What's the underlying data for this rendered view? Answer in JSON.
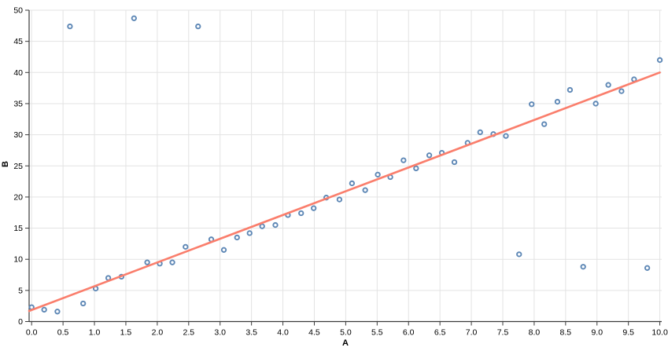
{
  "chart_data": {
    "type": "scatter",
    "title": "",
    "xlabel": "A",
    "ylabel": "B",
    "xlim": [
      -0.04,
      10.03
    ],
    "ylim": [
      0,
      50
    ],
    "grid": true,
    "legend": "none",
    "x_tick_labels": [
      "0.0",
      "0.5",
      "1.0",
      "1.5",
      "2.0",
      "2.5",
      "3.0",
      "3.5",
      "4.0",
      "4.5",
      "5.0",
      "5.5",
      "6.0",
      "6.5",
      "7.0",
      "7.5",
      "8.0",
      "8.5",
      "9.0",
      "9.5",
      "10.0"
    ],
    "y_tick_labels": [
      "0",
      "5",
      "10",
      "15",
      "20",
      "25",
      "30",
      "35",
      "40",
      "45",
      "50"
    ],
    "series": [
      {
        "name": "data-points",
        "type": "scatter",
        "marker_shape": "open-circle",
        "marker_stroke": "#5d87b5",
        "marker_fill": "#fcfdff",
        "points": [
          [
            0.0,
            2.3
          ],
          [
            0.2,
            1.9
          ],
          [
            0.41,
            1.6
          ],
          [
            0.61,
            47.4
          ],
          [
            0.82,
            2.9
          ],
          [
            1.02,
            5.3
          ],
          [
            1.22,
            7.0
          ],
          [
            1.43,
            7.2
          ],
          [
            1.63,
            48.7
          ],
          [
            1.84,
            9.5
          ],
          [
            2.04,
            9.3
          ],
          [
            2.24,
            9.5
          ],
          [
            2.45,
            12.0
          ],
          [
            2.65,
            47.4
          ],
          [
            2.86,
            13.2
          ],
          [
            3.06,
            11.5
          ],
          [
            3.27,
            13.5
          ],
          [
            3.47,
            14.2
          ],
          [
            3.67,
            15.3
          ],
          [
            3.88,
            15.5
          ],
          [
            4.08,
            17.1
          ],
          [
            4.29,
            17.4
          ],
          [
            4.49,
            18.2
          ],
          [
            4.69,
            19.9
          ],
          [
            4.9,
            19.6
          ],
          [
            5.1,
            22.2
          ],
          [
            5.31,
            21.1
          ],
          [
            5.51,
            23.6
          ],
          [
            5.71,
            23.2
          ],
          [
            5.92,
            25.9
          ],
          [
            6.12,
            24.6
          ],
          [
            6.33,
            26.7
          ],
          [
            6.53,
            27.1
          ],
          [
            6.73,
            25.6
          ],
          [
            6.94,
            28.7
          ],
          [
            7.14,
            30.4
          ],
          [
            7.35,
            30.1
          ],
          [
            7.55,
            29.8
          ],
          [
            7.76,
            10.8
          ],
          [
            7.96,
            34.9
          ],
          [
            8.16,
            31.7
          ],
          [
            8.37,
            35.3
          ],
          [
            8.57,
            37.2
          ],
          [
            8.78,
            8.8
          ],
          [
            8.98,
            35.0
          ],
          [
            9.18,
            38.0
          ],
          [
            9.39,
            37.0
          ],
          [
            9.59,
            38.9
          ],
          [
            9.8,
            8.6
          ],
          [
            10.0,
            42.0
          ]
        ]
      },
      {
        "name": "trend-line",
        "type": "line",
        "color": "#fa7e6c",
        "points": [
          [
            -0.04,
            1.7
          ],
          [
            10.0,
            40.0
          ]
        ]
      }
    ],
    "colors": {
      "grid": "#e3e3e3",
      "axis": "#3a3a3a",
      "tick_text": "#000000",
      "background": "#ffffff"
    }
  }
}
